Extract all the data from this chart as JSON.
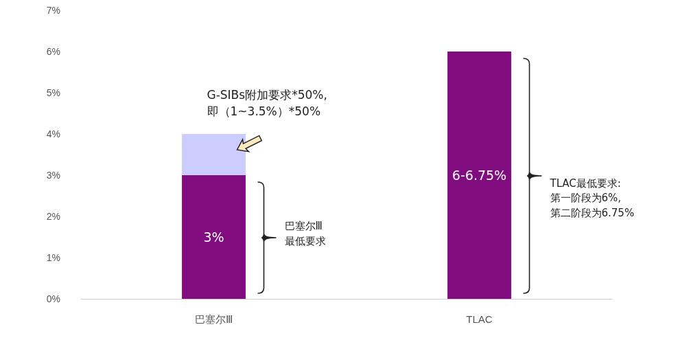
{
  "chart_data": {
    "type": "bar",
    "stacked": true,
    "categories": [
      "巴塞尔Ⅲ",
      "TLAC"
    ],
    "series": [
      {
        "color": "#800c80",
        "values": [
          3,
          6
        ],
        "value_labels": [
          "3%",
          "6-6.75%"
        ]
      },
      {
        "color": "#ccccff",
        "values": [
          1,
          null
        ]
      }
    ],
    "ylim": [
      0,
      7
    ],
    "yticks": [
      {
        "value": 0,
        "label": "0%"
      },
      {
        "value": 1,
        "label": "1%"
      },
      {
        "value": 2,
        "label": "2%"
      },
      {
        "value": 3,
        "label": "3%"
      },
      {
        "value": 4,
        "label": "4%"
      },
      {
        "value": 5,
        "label": "5%"
      },
      {
        "value": 6,
        "label": "6%"
      },
      {
        "value": 7,
        "label": "7%"
      }
    ],
    "grid": false,
    "annotations": [
      "G-SIBs附加要求*50%,\n即（1~3.5%）*50%",
      "巴塞尔Ⅲ\n最低要求",
      "TLAC最低要求:\n第一阶段为6%,\n第二阶段为6.75%"
    ]
  }
}
